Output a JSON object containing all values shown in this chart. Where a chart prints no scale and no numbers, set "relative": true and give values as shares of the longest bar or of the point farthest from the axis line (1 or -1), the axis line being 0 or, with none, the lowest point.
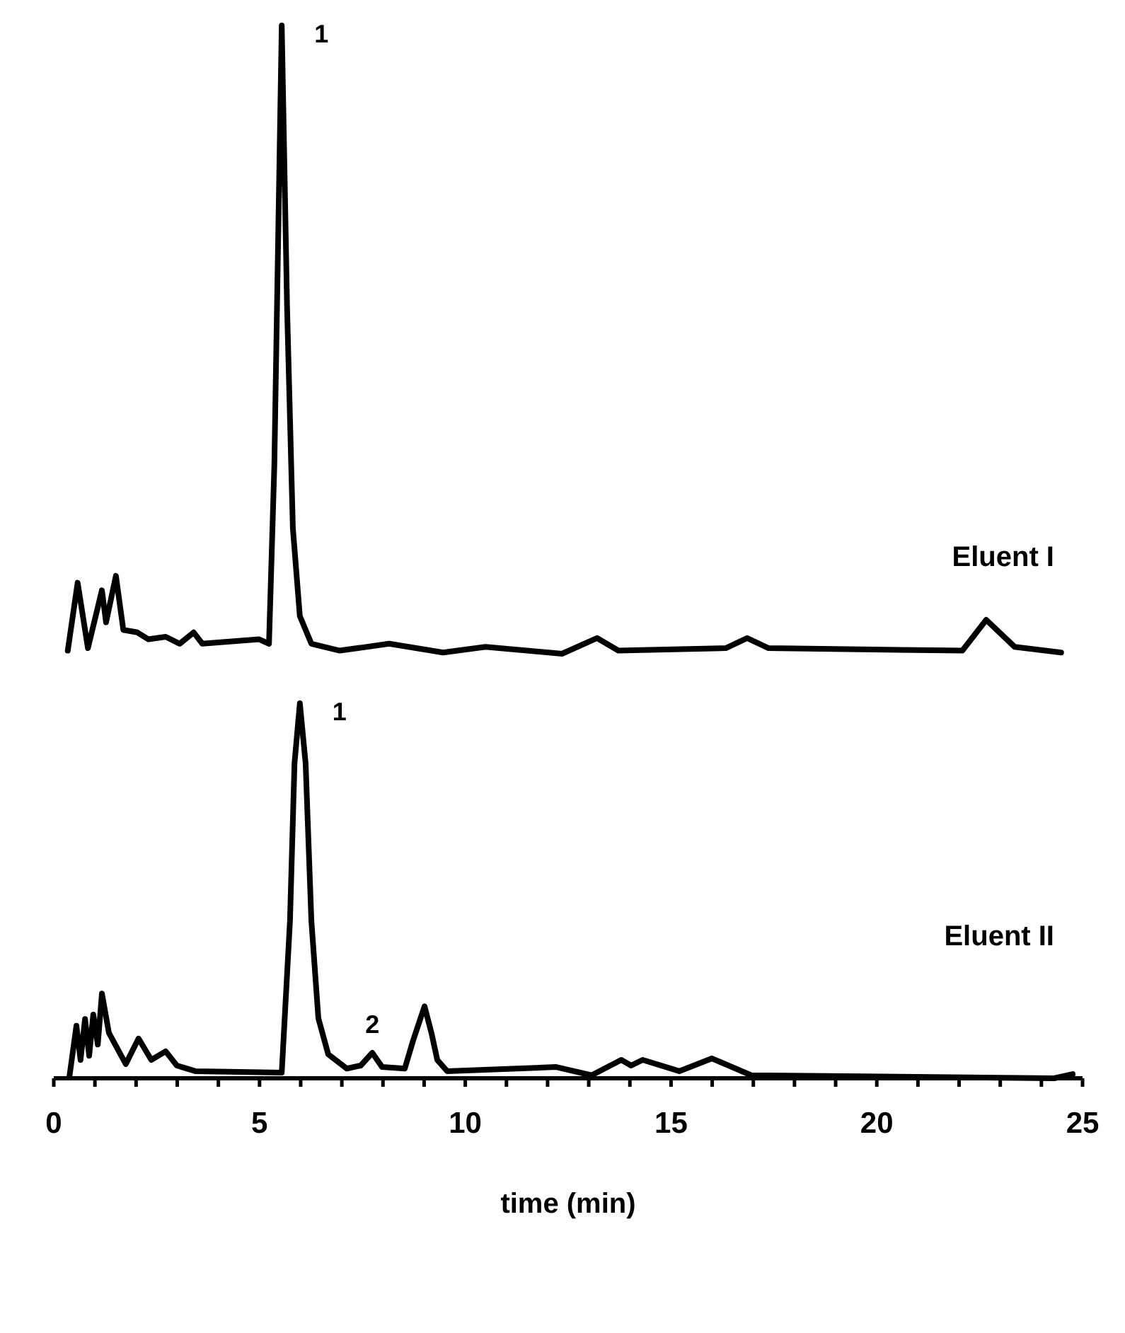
{
  "chart_data": [
    {
      "type": "line",
      "relative": true,
      "xlim": [
        0,
        25
      ],
      "tick_labels": false,
      "x": [
        0.34,
        0.58,
        0.83,
        1.17,
        1.27,
        1.51,
        1.69,
        2.03,
        2.3,
        2.72,
        3.06,
        3.4,
        3.61,
        4.99,
        5.23,
        5.36,
        5.54,
        5.67,
        5.81,
        5.98,
        6.26,
        6.95,
        8.15,
        9.46,
        10.49,
        12.35,
        13.2,
        13.72,
        16.33,
        16.85,
        17.37,
        22.08,
        22.66,
        23.35,
        24.48
      ],
      "series": [
        {
          "name": "Eluent I",
          "color": "#000000",
          "values": [
            0.005,
            0.113,
            0.009,
            0.101,
            0.05,
            0.124,
            0.038,
            0.034,
            0.023,
            0.027,
            0.016,
            0.034,
            0.016,
            0.023,
            0.016,
            0.3,
            1,
            0.55,
            0.2,
            0.06,
            0.016,
            0.005,
            0.016,
            0.002,
            0.011,
            0,
            0.025,
            0.005,
            0.009,
            0.025,
            0.009,
            0.005,
            0.054,
            0.011,
            0.002
          ]
        }
      ],
      "annotations": [
        {
          "text": "1",
          "x": 5.54,
          "y": 1
        }
      ]
    },
    {
      "type": "line",
      "relative": true,
      "xlim": [
        0,
        25
      ],
      "tick_labels": "x",
      "xlabel": "time (min)",
      "xticks": [
        0,
        {
          "value": 1,
          "label": null
        },
        {
          "value": 2,
          "label": null
        },
        {
          "value": 3,
          "label": null
        },
        {
          "value": 4,
          "label": null
        },
        5,
        {
          "value": 6,
          "label": null
        },
        {
          "value": 7,
          "label": null
        },
        {
          "value": 8,
          "label": null
        },
        {
          "value": 9,
          "label": null
        },
        10,
        {
          "value": 11,
          "label": null
        },
        {
          "value": 12,
          "label": null
        },
        {
          "value": 13,
          "label": null
        },
        {
          "value": 14,
          "label": null
        },
        15,
        {
          "value": 16,
          "label": null
        },
        {
          "value": 17,
          "label": null
        },
        {
          "value": 18,
          "label": null
        },
        {
          "value": 19,
          "label": null
        },
        20,
        {
          "value": 21,
          "label": null
        },
        {
          "value": 22,
          "label": null
        },
        {
          "value": 23,
          "label": null
        },
        {
          "value": 24,
          "label": null
        },
        25
      ],
      "x": [
        0.38,
        0.55,
        0.65,
        0.76,
        0.86,
        0.96,
        1.07,
        1.17,
        1.34,
        1.75,
        2.06,
        2.37,
        2.72,
        2.99,
        3.44,
        5.54,
        5.74,
        5.85,
        5.98,
        6.12,
        6.26,
        6.43,
        6.67,
        7.12,
        7.46,
        7.74,
        7.98,
        8.53,
        8.73,
        9.01,
        9.18,
        9.32,
        9.56,
        12.21,
        13.07,
        13.79,
        14.03,
        14.31,
        15.2,
        15.99,
        16.95,
        24.31,
        24.76
      ],
      "series": [
        {
          "name": "Eluent II",
          "color": "#000000",
          "values": [
            0.004,
            0.14,
            0.049,
            0.158,
            0.06,
            0.17,
            0.09,
            0.226,
            0.121,
            0.038,
            0.106,
            0.049,
            0.072,
            0.034,
            0.019,
            0.015,
            0.42,
            0.84,
            1,
            0.84,
            0.42,
            0.16,
            0.064,
            0.026,
            0.034,
            0.068,
            0.03,
            0.026,
            0.1,
            0.192,
            0.12,
            0.049,
            0.019,
            0.03,
            0.008,
            0.049,
            0.034,
            0.049,
            0.019,
            0.053,
            0.008,
            0,
            0.011
          ]
        }
      ],
      "annotations": [
        {
          "text": "1",
          "x": 5.98,
          "y": 1
        },
        {
          "text": "2",
          "x": 7.74,
          "y": 0.068
        }
      ]
    }
  ]
}
